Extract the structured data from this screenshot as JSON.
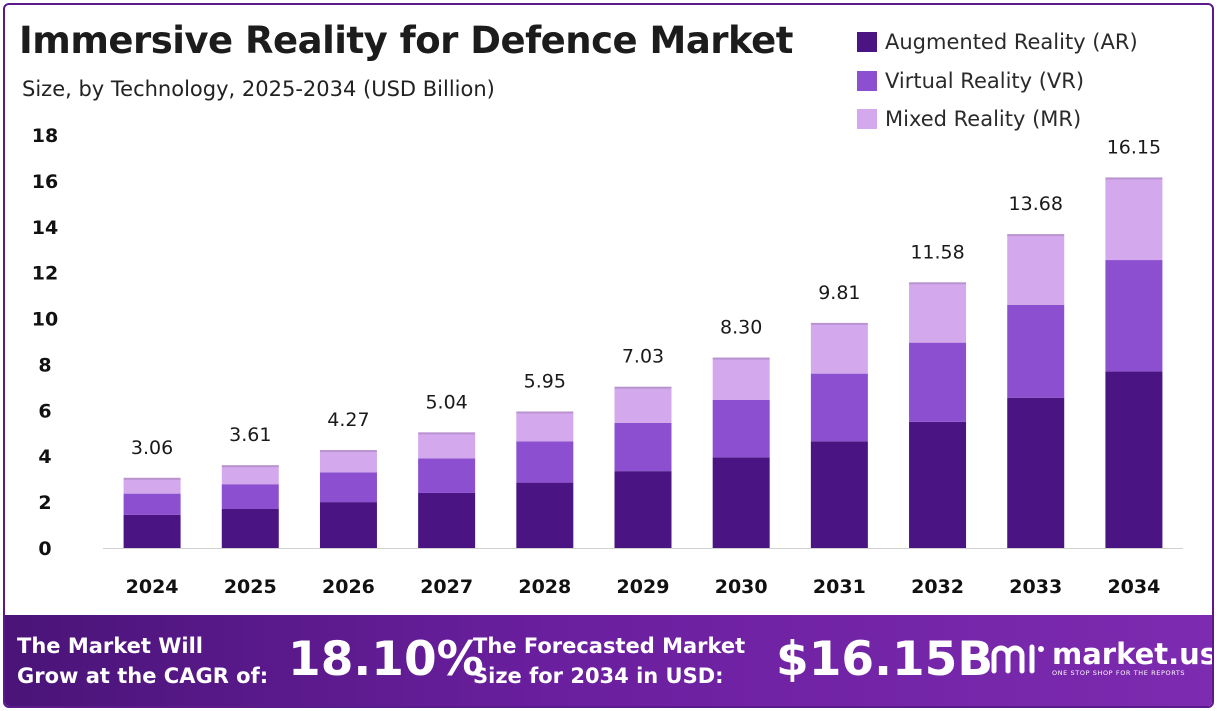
{
  "title": "Immersive Reality for Defence Market",
  "subtitle": "Size, by Technology, 2025-2034 (USD Billion)",
  "colors": {
    "ar": "#4a1582",
    "vr": "#8c4fd0",
    "mr": "#d3a8ec",
    "banner": "#6a1f9e",
    "axis_text": "#111111"
  },
  "chart_data": {
    "type": "bar",
    "stacked": true,
    "categories": [
      "2024",
      "2025",
      "2026",
      "2027",
      "2028",
      "2029",
      "2030",
      "2031",
      "2032",
      "2033",
      "2034"
    ],
    "series": [
      {
        "name": "Augmented Reality (AR)",
        "values": [
          1.45,
          1.7,
          2.0,
          2.4,
          2.85,
          3.35,
          3.95,
          4.65,
          5.5,
          6.55,
          7.7
        ]
      },
      {
        "name": "Virtual Reality (VR)",
        "values": [
          0.92,
          1.08,
          1.3,
          1.5,
          1.8,
          2.1,
          2.5,
          2.95,
          3.45,
          4.05,
          4.85
        ]
      },
      {
        "name": "Mixed Reality (MR)",
        "values": [
          0.69,
          0.83,
          0.97,
          1.14,
          1.3,
          1.58,
          1.85,
          2.21,
          2.63,
          3.08,
          3.6
        ]
      }
    ],
    "totals": [
      "3.06",
      "3.61",
      "4.27",
      "5.04",
      "5.95",
      "7.03",
      "8.30",
      "9.81",
      "11.58",
      "13.68",
      "16.15"
    ],
    "yticks": [
      "0",
      "2",
      "4",
      "6",
      "8",
      "10",
      "12",
      "14",
      "16",
      "18"
    ],
    "ylim": [
      0,
      18
    ],
    "legend_position": "top-right",
    "grid": false
  },
  "banner": {
    "cagr_line1": "The Market Will",
    "cagr_line2": "Grow at the CAGR of:",
    "cagr_value": "18.10%",
    "forecast_line1": "The Forecasted Market",
    "forecast_line2": "Size for 2034 in USD:",
    "forecast_value": "$16.15B",
    "logo_text": "market.us",
    "logo_tagline": "ONE STOP SHOP FOR THE REPORTS"
  }
}
